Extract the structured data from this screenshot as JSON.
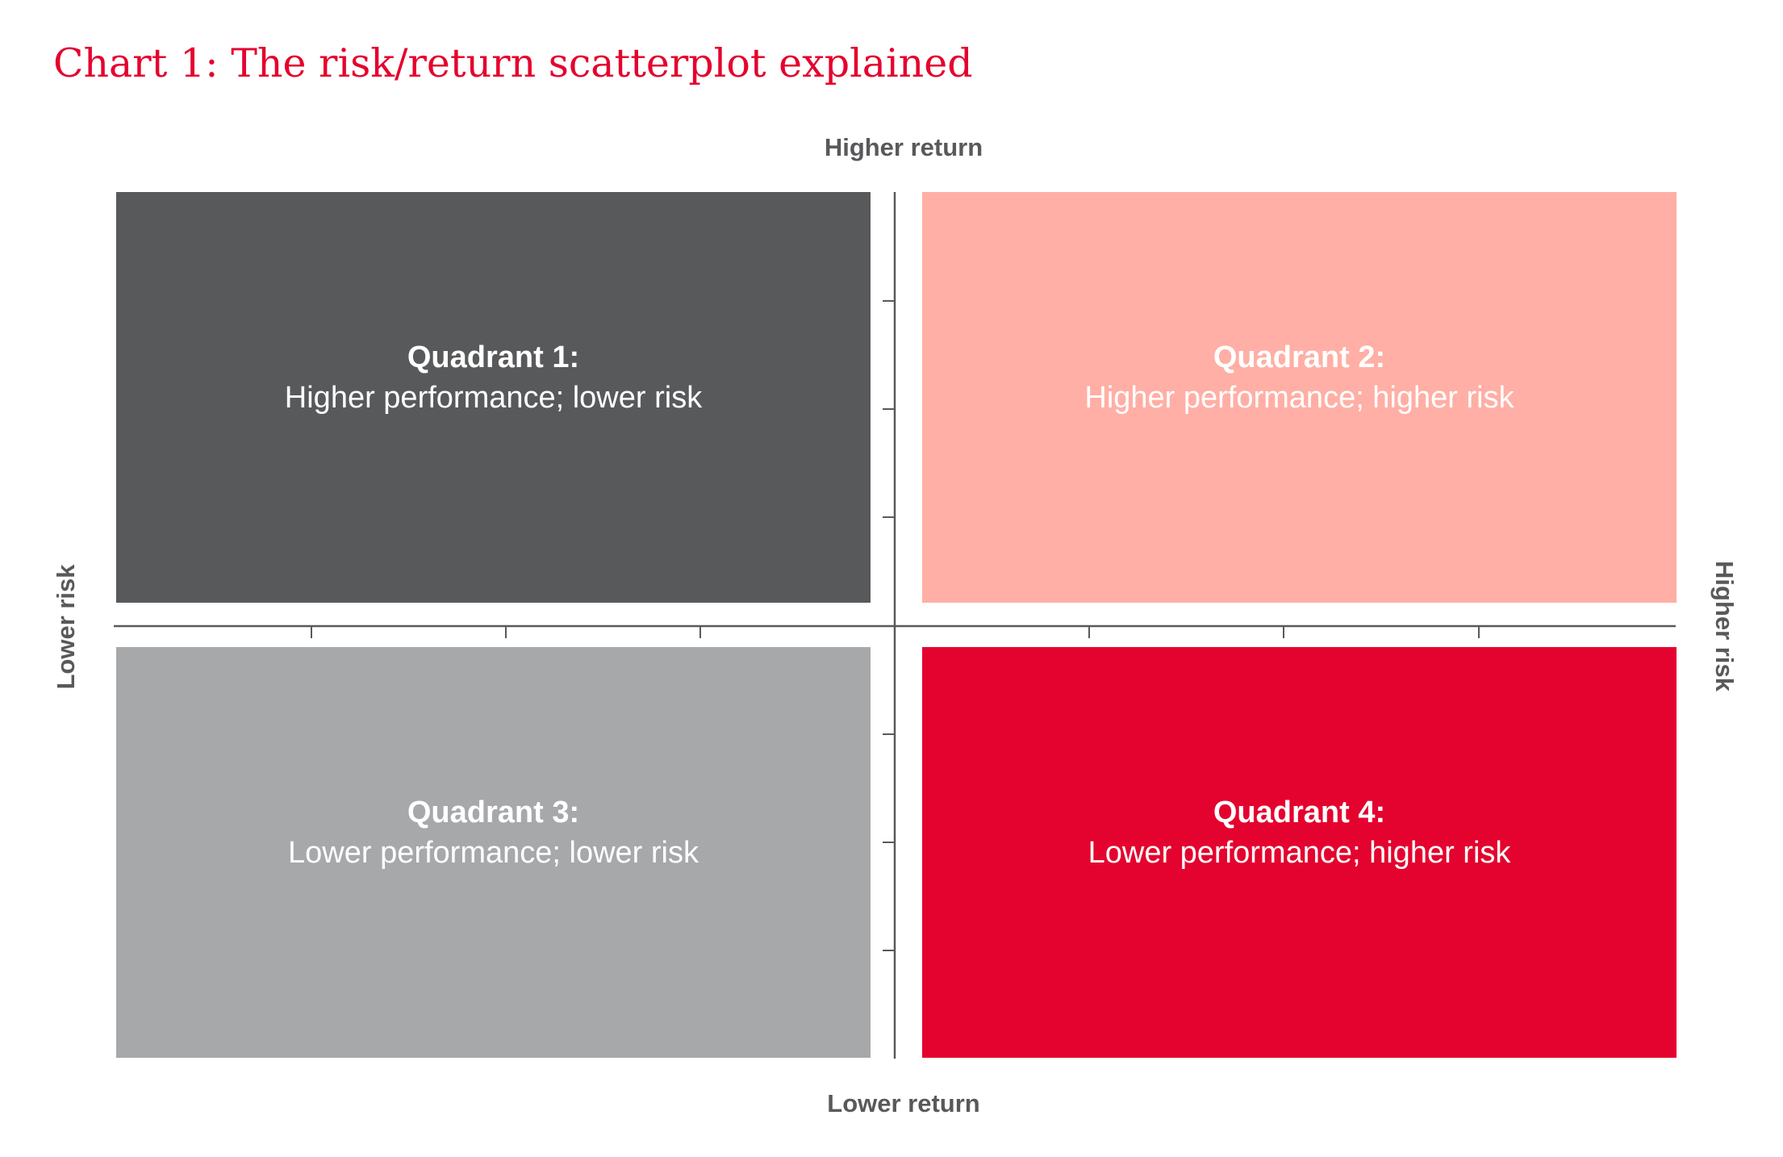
{
  "title": "Chart 1: The risk/return scatterplot explained",
  "axes": {
    "top": "Higher return",
    "bottom": "Lower return",
    "left": "Lower risk",
    "right": "Higher risk"
  },
  "quadrants": [
    {
      "heading": "Quadrant 1:",
      "description": "Higher performance; lower risk",
      "fill": "#58595b",
      "text_color": "#ffffff"
    },
    {
      "heading": "Quadrant 2:",
      "description": "Higher performance; higher risk",
      "fill": "#ffafa5",
      "text_color": "#ffffff"
    },
    {
      "heading": "Quadrant 3:",
      "description": "Lower performance; lower risk",
      "fill": "#a7a8aa",
      "text_color": "#ffffff"
    },
    {
      "heading": "Quadrant 4:",
      "description": "Lower performance; higher risk",
      "fill": "#e4032e",
      "text_color": "#ffffff"
    }
  ],
  "colors": {
    "title": "#e4032e",
    "axis_line": "#58595b",
    "axis_label": "#58595b"
  }
}
